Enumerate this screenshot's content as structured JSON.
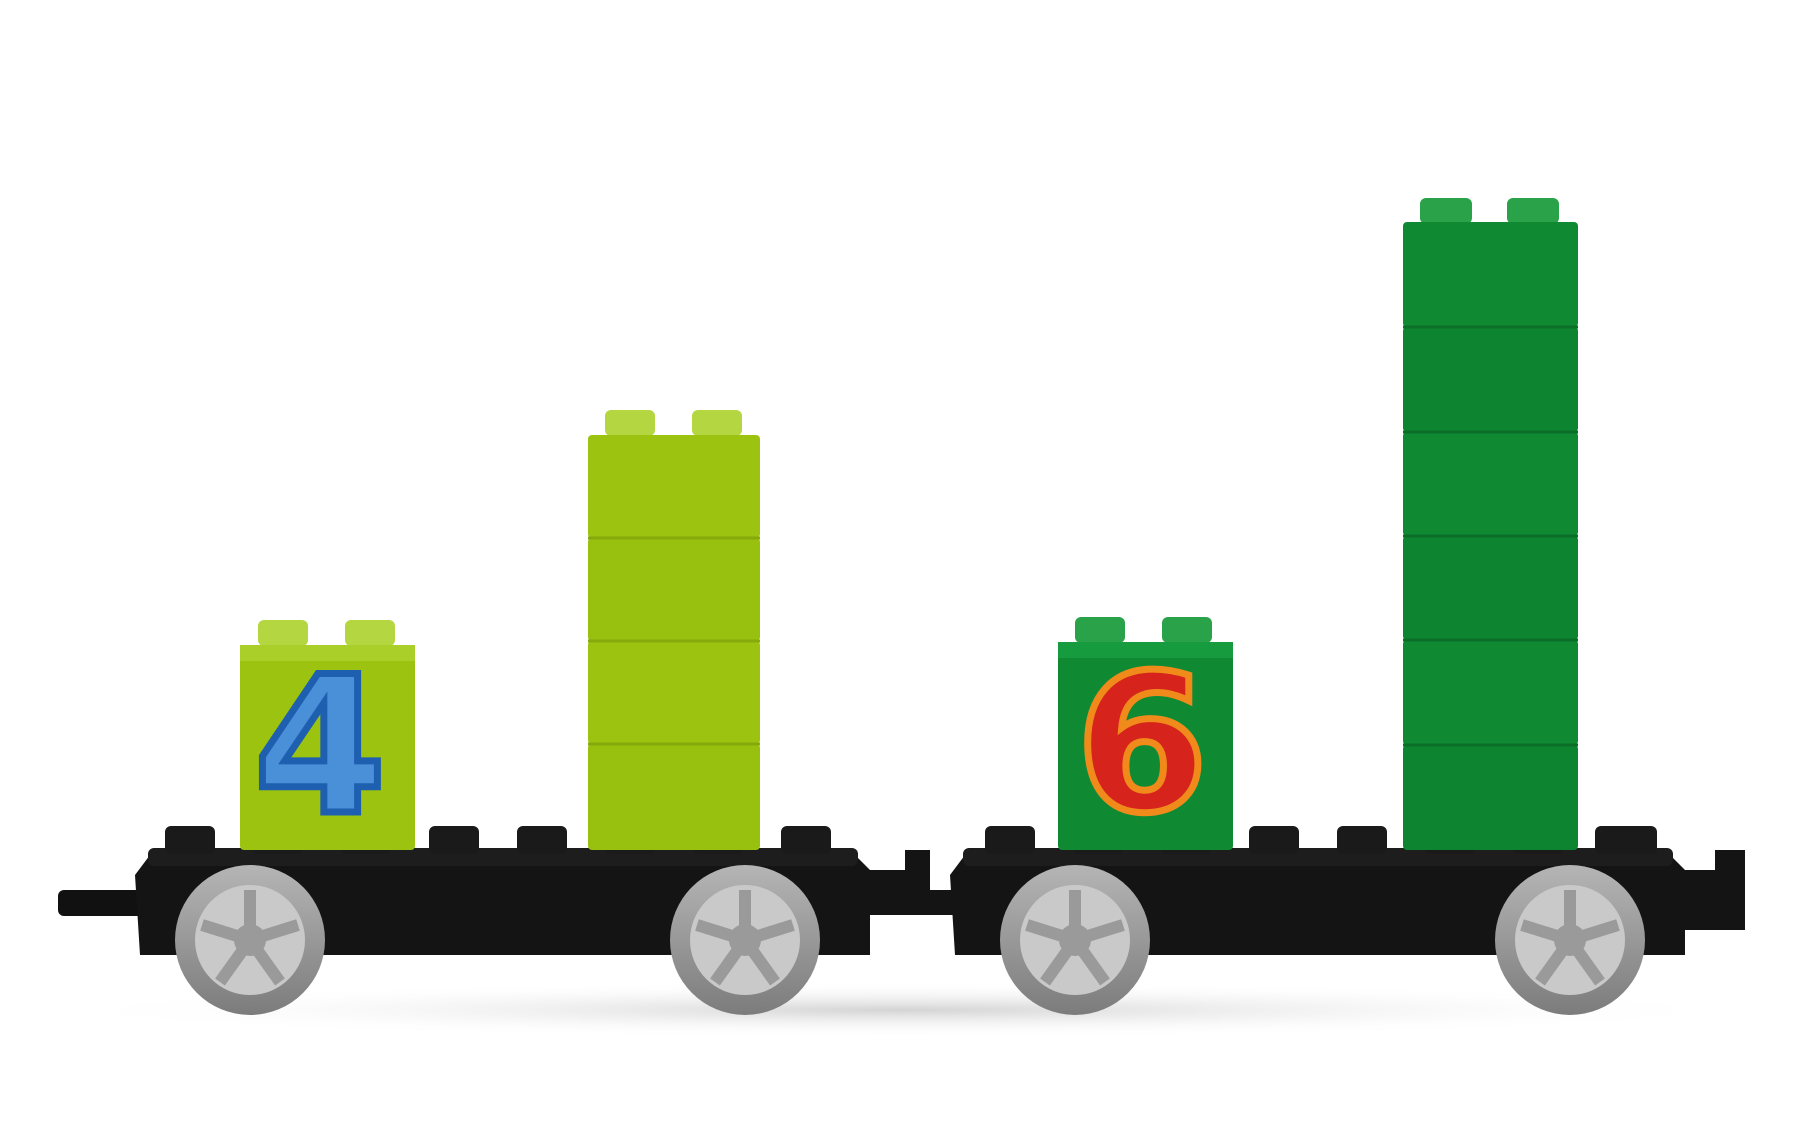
{
  "scene": {
    "background": "#ffffff",
    "subject": "toy-train-counting-blocks"
  },
  "wagons": [
    {
      "id": "left-wagon",
      "number_label": "4",
      "number_color": "#4a90d9",
      "number_outline": "#1e5fb0",
      "block_color": "#9bc30f",
      "block_stack_count": 4
    },
    {
      "id": "right-wagon",
      "number_label": "6",
      "number_color": "#d6231c",
      "number_outline": "#f08a1a",
      "block_color": "#0f8a33",
      "block_stack_count": 6
    }
  ],
  "colors": {
    "lime_face": "#9bc30f",
    "lime_dark": "#86aa0c",
    "lime_light": "#b4d640",
    "green_face": "#0f8a33",
    "green_dark": "#0b6f28",
    "green_light": "#2aa24a",
    "chassis": "#111111",
    "chassis_highlight": "#2a2a2a",
    "wheel_tire": "#9a9a9a",
    "wheel_hub": "#c9c9c9",
    "shadow": "#d9d9d9"
  }
}
